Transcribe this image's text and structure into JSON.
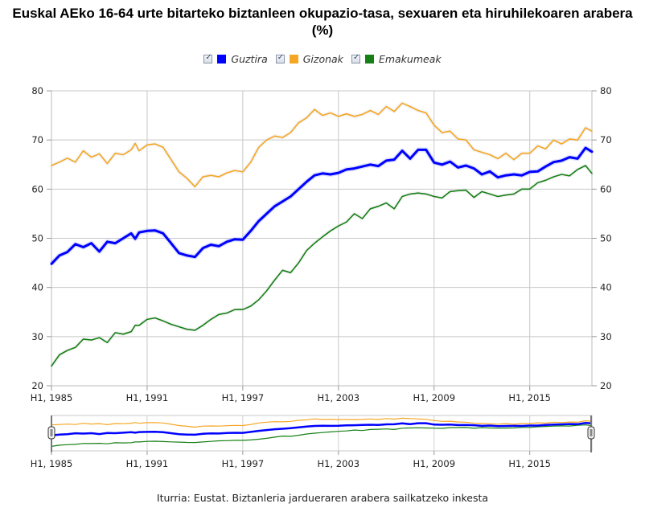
{
  "title": "Euskal AEko 16-64 urte bitarteko biztanleen okupazio-tasa, sexuaren eta hiruhilekoaren arabera (%)",
  "legend": [
    {
      "label": "Guztira",
      "color": "#0000ff",
      "checked": true
    },
    {
      "label": "Gizonak",
      "color": "#f5a623",
      "checked": true
    },
    {
      "label": "Emakumeak",
      "color": "#168016",
      "checked": true
    }
  ],
  "source": "Iturria: Eustat. Biztanleria jardueraren arabera sailkatzeko inkesta",
  "chart_data": {
    "type": "line",
    "title": "Euskal AEko 16-64 urte bitarteko biztanleen okupazio-tasa, sexuaren eta hiruhilekoaren arabera (%)",
    "xlabel": "",
    "ylabel": "",
    "ylim": [
      20,
      80
    ],
    "xlim": [
      1985,
      2018.9
    ],
    "yticks": [
      20,
      30,
      40,
      50,
      60,
      70,
      80
    ],
    "yticks_right": [
      20,
      30,
      40,
      50,
      60,
      70,
      80
    ],
    "xticks": [
      {
        "value": 1985,
        "label": "H1, 1985"
      },
      {
        "value": 1991,
        "label": "H1, 1991"
      },
      {
        "value": 1997,
        "label": "H1, 1997"
      },
      {
        "value": 2003,
        "label": "H1, 2003"
      },
      {
        "value": 2009,
        "label": "H1, 2009"
      },
      {
        "value": 2015,
        "label": "H1, 2015"
      }
    ],
    "grid": true,
    "legend_position": "top-center",
    "x": [
      1985,
      1985.5,
      1986,
      1986.5,
      1987,
      1987.5,
      1988,
      1988.5,
      1989,
      1989.5,
      1990,
      1990.25,
      1990.5,
      1991,
      1991.5,
      1992,
      1992.5,
      1993,
      1993.5,
      1994,
      1994.5,
      1995,
      1995.5,
      1996,
      1996.5,
      1997,
      1997.5,
      1998,
      1998.5,
      1999,
      1999.5,
      2000,
      2000.5,
      2001,
      2001.5,
      2002,
      2002.5,
      2003,
      2003.5,
      2004,
      2004.5,
      2005,
      2005.5,
      2006,
      2006.5,
      2007,
      2007.5,
      2008,
      2008.5,
      2009,
      2009.5,
      2010,
      2010.5,
      2011,
      2011.5,
      2012,
      2012.5,
      2013,
      2013.5,
      2014,
      2014.5,
      2015,
      2015.5,
      2016,
      2016.5,
      2017,
      2017.5,
      2018,
      2018.5,
      2018.9
    ],
    "series": [
      {
        "name": "Guztira",
        "color": "#0000ff",
        "values": [
          44.8,
          46.5,
          47.2,
          48.8,
          48.2,
          49.0,
          47.3,
          49.3,
          49.0,
          50.0,
          51.0,
          49.9,
          51.2,
          51.5,
          51.6,
          51.0,
          49.0,
          47.0,
          46.5,
          46.2,
          48.0,
          48.7,
          48.4,
          49.3,
          49.8,
          49.7,
          51.5,
          53.5,
          55.0,
          56.5,
          57.5,
          58.5,
          60.0,
          61.5,
          62.8,
          63.2,
          63.0,
          63.3,
          64.0,
          64.2,
          64.6,
          65.0,
          64.7,
          65.8,
          66.0,
          67.8,
          66.2,
          68.0,
          68.0,
          65.4,
          65.0,
          65.6,
          64.4,
          64.8,
          64.2,
          63.0,
          63.6,
          62.4,
          62.8,
          63.0,
          62.8,
          63.5,
          63.6,
          64.6,
          65.5,
          65.8,
          66.5,
          66.2,
          68.4,
          67.6
        ]
      },
      {
        "name": "Gizonak",
        "color": "#f5a623",
        "values": [
          64.8,
          65.5,
          66.3,
          65.5,
          67.8,
          66.5,
          67.2,
          65.2,
          67.3,
          67.0,
          68.0,
          69.3,
          67.8,
          69.0,
          69.2,
          68.5,
          66.0,
          63.5,
          62.2,
          60.5,
          62.5,
          62.8,
          62.5,
          63.3,
          63.8,
          63.5,
          65.5,
          68.5,
          70.0,
          70.8,
          70.5,
          71.5,
          73.5,
          74.5,
          76.2,
          75.0,
          75.5,
          74.8,
          75.3,
          74.8,
          75.2,
          76.0,
          75.2,
          76.8,
          75.8,
          77.5,
          76.8,
          76.0,
          75.5,
          73.0,
          71.5,
          71.8,
          70.2,
          70.0,
          68.0,
          67.5,
          67.0,
          66.2,
          67.3,
          66.0,
          67.3,
          67.3,
          68.8,
          68.2,
          70.0,
          69.2,
          70.2,
          70.0,
          72.5,
          71.8
        ]
      },
      {
        "name": "Emakumeak",
        "color": "#168016",
        "values": [
          24.0,
          26.3,
          27.2,
          27.8,
          29.5,
          29.3,
          29.8,
          28.8,
          30.8,
          30.5,
          31.0,
          32.3,
          32.3,
          33.5,
          33.8,
          33.2,
          32.5,
          32.0,
          31.5,
          31.3,
          32.3,
          33.5,
          34.5,
          34.8,
          35.5,
          35.5,
          36.2,
          37.5,
          39.3,
          41.5,
          43.5,
          43.0,
          45.0,
          47.5,
          49.0,
          50.3,
          51.5,
          52.5,
          53.3,
          55.0,
          54.0,
          56.0,
          56.5,
          57.2,
          56.0,
          58.5,
          59.0,
          59.2,
          59.0,
          58.5,
          58.2,
          59.5,
          59.7,
          59.8,
          58.3,
          59.5,
          59.0,
          58.5,
          58.8,
          59.0,
          60.0,
          60.0,
          61.3,
          61.8,
          62.5,
          63.0,
          62.7,
          64.0,
          64.8,
          63.2
        ]
      }
    ]
  }
}
